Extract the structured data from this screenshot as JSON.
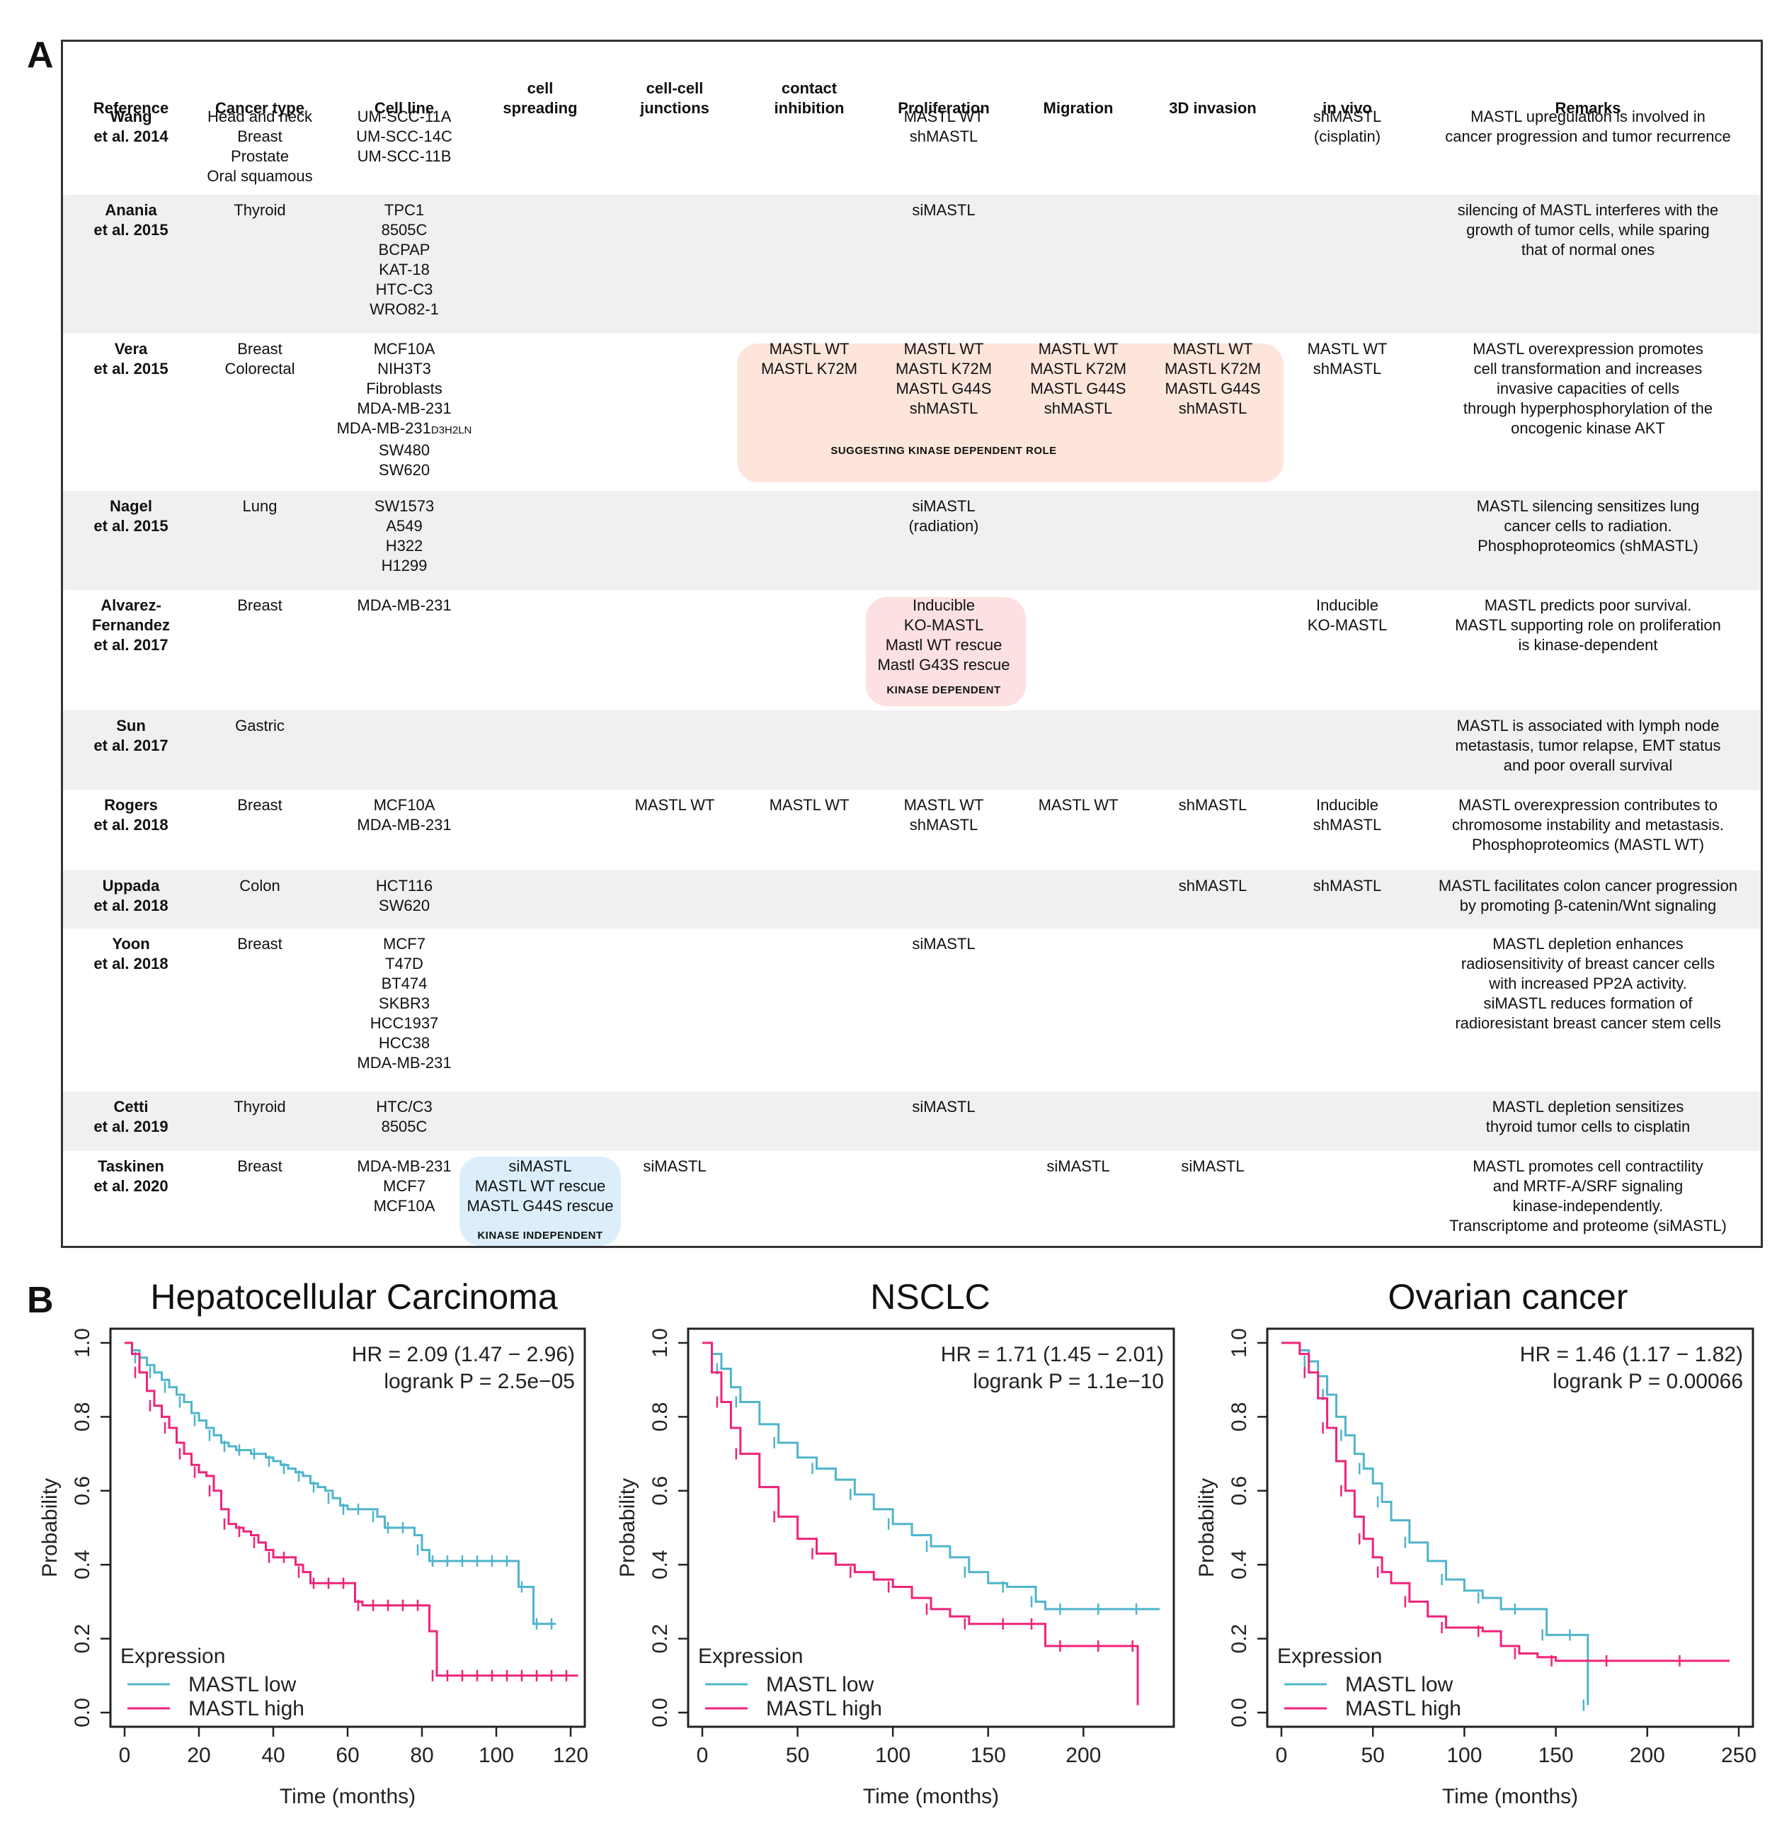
{
  "panel_labels": {
    "a": "A",
    "b": "B"
  },
  "table": {
    "headers": [
      "Reference",
      "Cancer type",
      "Cell line",
      "cell\nspreading",
      "cell-cell\njunctions",
      "contact\ninhibition",
      "Proliferation",
      "Migration",
      "3D invasion",
      "in vivo",
      "Remarks"
    ],
    "rows": [
      {
        "reference": [
          "Wang",
          "et al. 2014"
        ],
        "cancer": [
          "Head and neck",
          "Breast",
          "Prostate",
          "Oral squamous"
        ],
        "cells": [
          "UM-SCC-11A",
          "UM-SCC-14C",
          "UM-SCC-11B"
        ],
        "proliferation": [
          "MASTL WT",
          "shMASTL"
        ],
        "invivo": [
          "shMASTL",
          "(cisplatin)"
        ],
        "remarks": [
          "MASTL upregulation is involved in",
          "cancer progression and tumor recurrence"
        ]
      },
      {
        "reference": [
          "Anania",
          "et al. 2015"
        ],
        "cancer": [
          "Thyroid"
        ],
        "cells": [
          "TPC1",
          "8505C",
          "BCPAP",
          "KAT-18",
          "HTC-C3",
          "WRO82-1"
        ],
        "proliferation": [
          "siMASTL"
        ],
        "remarks": [
          "silencing of MASTL interferes with the",
          "growth of tumor cells, while sparing",
          "that of normal ones"
        ]
      },
      {
        "reference": [
          "Vera",
          "et al. 2015"
        ],
        "cancer": [
          "Breast",
          "Colorectal"
        ],
        "cells": [
          "MCF10A",
          "NIH3T3",
          "Fibroblasts",
          "MDA-MB-231",
          "MDA-MB-231",
          "SW480",
          "SW620"
        ],
        "cell_subscript": "D3H2LN",
        "contact": [
          "MASTL WT",
          "MASTL K72M"
        ],
        "proliferation": [
          "MASTL WT",
          "MASTL K72M",
          "MASTL G44S",
          "shMASTL"
        ],
        "migration": [
          "MASTL WT",
          "MASTL K72M",
          "MASTL G44S",
          "shMASTL"
        ],
        "invasion": [
          "MASTL WT",
          "MASTL K72M",
          "MASTL G44S",
          "shMASTL"
        ],
        "box_tag": "SUGGESTING KINASE DEPENDENT ROLE",
        "invivo": [
          "MASTL WT",
          "shMASTL"
        ],
        "remarks": [
          "MASTL overexpression promotes",
          "cell transformation and increases",
          "invasive capacities of cells",
          "through hyperphosphorylation of the",
          "oncogenic kinase AKT"
        ]
      },
      {
        "reference": [
          "Nagel",
          "et al. 2015"
        ],
        "cancer": [
          "Lung"
        ],
        "cells": [
          "SW1573",
          "A549",
          "H322",
          "H1299"
        ],
        "proliferation": [
          "siMASTL",
          "(radiation)"
        ],
        "remarks": [
          "MASTL silencing sensitizes lung",
          "cancer cells to radiation.",
          "Phosphoproteomics (shMASTL)"
        ]
      },
      {
        "reference": [
          "Alvarez-",
          "Fernandez",
          "et al. 2017"
        ],
        "cancer": [
          "Breast"
        ],
        "cells": [
          "MDA-MB-231"
        ],
        "proliferation": [
          "Inducible",
          "KO-MASTL",
          "Mastl WT rescue",
          "Mastl G43S rescue"
        ],
        "box_tag": "KINASE DEPENDENT",
        "invivo": [
          "Inducible",
          "KO-MASTL"
        ],
        "remarks": [
          "MASTL predicts poor survival.",
          "MASTL supporting role on proliferation",
          "is kinase-dependent"
        ]
      },
      {
        "reference": [
          "Sun",
          "et al. 2017"
        ],
        "cancer": [
          "Gastric"
        ],
        "remarks": [
          "MASTL is associated with lymph node",
          "metastasis, tumor relapse, EMT status",
          "and poor overall survival"
        ]
      },
      {
        "reference": [
          "Rogers",
          "et al. 2018"
        ],
        "cancer": [
          "Breast"
        ],
        "cells": [
          "MCF10A",
          "MDA-MB-231"
        ],
        "junctions": [
          "MASTL WT"
        ],
        "contact": [
          "MASTL WT"
        ],
        "proliferation": [
          "MASTL WT",
          "shMASTL"
        ],
        "migration": [
          "MASTL WT"
        ],
        "invasion": [
          "shMASTL"
        ],
        "invivo": [
          "Inducible",
          "shMASTL"
        ],
        "remarks": [
          "MASTL overexpression contributes to",
          "chromosome instability and metastasis.",
          "Phosphoproteomics (MASTL WT)"
        ]
      },
      {
        "reference": [
          "Uppada",
          "et al. 2018"
        ],
        "cancer": [
          "Colon"
        ],
        "cells": [
          "HCT116",
          "SW620"
        ],
        "invasion": [
          "shMASTL"
        ],
        "invivo": [
          "shMASTL"
        ],
        "remarks": [
          "MASTL facilitates colon cancer progression",
          "by promoting β-catenin/Wnt signaling"
        ]
      },
      {
        "reference": [
          "Yoon",
          "et al. 2018"
        ],
        "cancer": [
          "Breast"
        ],
        "cells": [
          "MCF7",
          "T47D",
          "BT474",
          "SKBR3",
          "HCC1937",
          "HCC38",
          "MDA-MB-231"
        ],
        "proliferation": [
          "siMASTL"
        ],
        "remarks": [
          "MASTL depletion enhances",
          "radiosensitivity of breast cancer cells",
          "with increased PP2A activity.",
          "siMASTL reduces formation of",
          "radioresistant breast cancer stem cells"
        ]
      },
      {
        "reference": [
          "Cetti",
          "et al. 2019"
        ],
        "cancer": [
          "Thyroid"
        ],
        "cells": [
          "HTC/C3",
          "8505C"
        ],
        "proliferation": [
          "siMASTL"
        ],
        "remarks": [
          "MASTL depletion sensitizes",
          "thyroid tumor cells to cisplatin"
        ]
      },
      {
        "reference": [
          "Taskinen",
          "et al. 2020"
        ],
        "cancer": [
          "Breast"
        ],
        "cells": [
          "MDA-MB-231",
          "MCF7",
          "MCF10A"
        ],
        "spreading": [
          "siMASTL",
          "MASTL WT rescue",
          "MASTL G44S rescue"
        ],
        "box_tag": "KINASE INDEPENDENT",
        "junctions": [
          "siMASTL"
        ],
        "migration": [
          "siMASTL"
        ],
        "invasion": [
          "siMASTL"
        ],
        "remarks": [
          "MASTL promotes cell contractility",
          "and MRTF-A/SRF signaling",
          "kinase-independently.",
          "Transcriptome and proteome (siMASTL)"
        ]
      }
    ]
  },
  "colors": {
    "low": "#4fb5cb",
    "high": "#f0237a",
    "box_orange": "#fde5dc",
    "box_red": "#fde0e1",
    "box_blue": "#dceefa"
  },
  "chart_data": [
    {
      "type": "line",
      "title": "Hepatocellular Carcinoma",
      "xlabel": "Time (months)",
      "ylabel": "Probability",
      "xlim": [
        0,
        120
      ],
      "ylim": [
        0,
        1
      ],
      "xticks": [
        0,
        20,
        40,
        60,
        80,
        100,
        120
      ],
      "yticks": [
        0.0,
        0.2,
        0.4,
        0.6,
        0.8,
        1.0
      ],
      "hr_text": "HR = 2.09 (1.47 − 2.96)",
      "p_text": "logrank P = 2.5e−05",
      "legend_title": "Expression",
      "series": [
        {
          "name": "MASTL low",
          "x": [
            0,
            2,
            4,
            6,
            8,
            10,
            12,
            14,
            16,
            18,
            20,
            22,
            24,
            26,
            28,
            30,
            32,
            34,
            36,
            38,
            40,
            42,
            44,
            46,
            48,
            50,
            52,
            54,
            56,
            58,
            60,
            62,
            64,
            66,
            68,
            70,
            72,
            74,
            76,
            78,
            80,
            82,
            84,
            86,
            88,
            90,
            92,
            94,
            96,
            98,
            100,
            102,
            104,
            106,
            108,
            110,
            112,
            114,
            116
          ],
          "y": [
            1.0,
            0.98,
            0.96,
            0.94,
            0.92,
            0.9,
            0.88,
            0.86,
            0.84,
            0.81,
            0.79,
            0.77,
            0.75,
            0.73,
            0.72,
            0.71,
            0.71,
            0.7,
            0.7,
            0.69,
            0.68,
            0.67,
            0.66,
            0.65,
            0.64,
            0.62,
            0.61,
            0.6,
            0.58,
            0.56,
            0.55,
            0.55,
            0.55,
            0.55,
            0.53,
            0.5,
            0.5,
            0.5,
            0.5,
            0.48,
            0.44,
            0.41,
            0.41,
            0.41,
            0.41,
            0.41,
            0.41,
            0.41,
            0.41,
            0.41,
            0.41,
            0.41,
            0.41,
            0.34,
            0.34,
            0.24,
            0.24,
            0.24,
            0.24
          ]
        },
        {
          "name": "MASTL high",
          "x": [
            0,
            2,
            4,
            6,
            8,
            10,
            12,
            14,
            16,
            18,
            20,
            22,
            24,
            26,
            28,
            30,
            32,
            34,
            36,
            38,
            40,
            42,
            44,
            46,
            48,
            50,
            52,
            54,
            56,
            58,
            60,
            62,
            64,
            66,
            68,
            70,
            72,
            74,
            76,
            78,
            80,
            82,
            84,
            86,
            88,
            90,
            92,
            94,
            96,
            98,
            100,
            102,
            104,
            106,
            108,
            110,
            112,
            114,
            116,
            118,
            120,
            122
          ],
          "y": [
            1.0,
            0.97,
            0.92,
            0.87,
            0.83,
            0.8,
            0.77,
            0.73,
            0.7,
            0.67,
            0.65,
            0.64,
            0.6,
            0.55,
            0.51,
            0.5,
            0.49,
            0.48,
            0.46,
            0.44,
            0.42,
            0.42,
            0.42,
            0.4,
            0.38,
            0.35,
            0.35,
            0.35,
            0.35,
            0.35,
            0.35,
            0.3,
            0.29,
            0.29,
            0.29,
            0.29,
            0.29,
            0.29,
            0.29,
            0.29,
            0.29,
            0.22,
            0.1,
            0.1,
            0.1,
            0.1,
            0.1,
            0.1,
            0.1,
            0.1,
            0.1,
            0.1,
            0.1,
            0.1,
            0.1,
            0.1,
            0.1,
            0.1,
            0.1,
            0.1,
            0.1,
            0.1
          ]
        }
      ]
    },
    {
      "type": "line",
      "title": "NSCLC",
      "xlabel": "Time (months)",
      "ylabel": "Probability",
      "xlim": [
        0,
        240
      ],
      "ylim": [
        0,
        1
      ],
      "xticks": [
        0,
        50,
        100,
        150,
        200
      ],
      "yticks": [
        0.0,
        0.2,
        0.4,
        0.6,
        0.8,
        1.0
      ],
      "hr_text": "HR = 1.71 (1.45 − 2.01)",
      "p_text": "logrank P = 1.1e−10",
      "legend_title": "Expression",
      "series": [
        {
          "name": "MASTL low",
          "x": [
            0,
            5,
            10,
            15,
            20,
            30,
            40,
            50,
            60,
            70,
            80,
            90,
            100,
            110,
            120,
            130,
            140,
            150,
            160,
            170,
            175,
            180,
            190,
            200,
            210,
            220,
            230,
            240
          ],
          "y": [
            1.0,
            0.97,
            0.93,
            0.88,
            0.84,
            0.78,
            0.73,
            0.69,
            0.66,
            0.63,
            0.59,
            0.55,
            0.51,
            0.48,
            0.45,
            0.42,
            0.38,
            0.35,
            0.34,
            0.34,
            0.3,
            0.28,
            0.28,
            0.28,
            0.28,
            0.28,
            0.28,
            0.28
          ]
        },
        {
          "name": "MASTL high",
          "x": [
            0,
            5,
            10,
            15,
            20,
            30,
            40,
            50,
            60,
            70,
            80,
            90,
            100,
            110,
            120,
            130,
            140,
            150,
            160,
            170,
            175,
            180,
            190,
            200,
            210,
            220,
            228,
            228.5
          ],
          "y": [
            1.0,
            0.92,
            0.84,
            0.77,
            0.7,
            0.61,
            0.53,
            0.47,
            0.43,
            0.4,
            0.38,
            0.36,
            0.34,
            0.31,
            0.28,
            0.26,
            0.24,
            0.24,
            0.24,
            0.24,
            0.24,
            0.18,
            0.18,
            0.18,
            0.18,
            0.18,
            0.18,
            0.02
          ]
        }
      ]
    },
    {
      "type": "line",
      "title": "Ovarian cancer",
      "xlabel": "Time (months)",
      "ylabel": "Probability",
      "xlim": [
        0,
        250
      ],
      "ylim": [
        0,
        1
      ],
      "xticks": [
        0,
        50,
        100,
        150,
        200,
        250
      ],
      "yticks": [
        0.0,
        0.2,
        0.4,
        0.6,
        0.8,
        1.0
      ],
      "hr_text": "HR = 1.46 (1.17 − 1.82)",
      "p_text": "logrank P = 0.00066",
      "legend_title": "Expression",
      "series": [
        {
          "name": "MASTL low",
          "x": [
            0,
            10,
            15,
            20,
            25,
            30,
            35,
            40,
            45,
            50,
            55,
            60,
            70,
            80,
            90,
            100,
            110,
            120,
            130,
            140,
            145,
            150,
            160,
            167,
            167.5
          ],
          "y": [
            1.0,
            0.98,
            0.95,
            0.91,
            0.86,
            0.8,
            0.75,
            0.7,
            0.66,
            0.62,
            0.57,
            0.52,
            0.46,
            0.41,
            0.36,
            0.33,
            0.31,
            0.28,
            0.28,
            0.28,
            0.21,
            0.21,
            0.21,
            0.21,
            0.02
          ]
        },
        {
          "name": "MASTL high",
          "x": [
            0,
            10,
            15,
            20,
            25,
            30,
            35,
            40,
            45,
            50,
            55,
            60,
            70,
            80,
            90,
            100,
            110,
            120,
            130,
            140,
            150,
            160,
            180,
            200,
            220,
            245
          ],
          "y": [
            1.0,
            0.97,
            0.92,
            0.85,
            0.77,
            0.68,
            0.6,
            0.53,
            0.47,
            0.42,
            0.38,
            0.35,
            0.3,
            0.26,
            0.23,
            0.23,
            0.22,
            0.18,
            0.16,
            0.15,
            0.14,
            0.14,
            0.14,
            0.14,
            0.14,
            0.14
          ]
        }
      ]
    }
  ]
}
